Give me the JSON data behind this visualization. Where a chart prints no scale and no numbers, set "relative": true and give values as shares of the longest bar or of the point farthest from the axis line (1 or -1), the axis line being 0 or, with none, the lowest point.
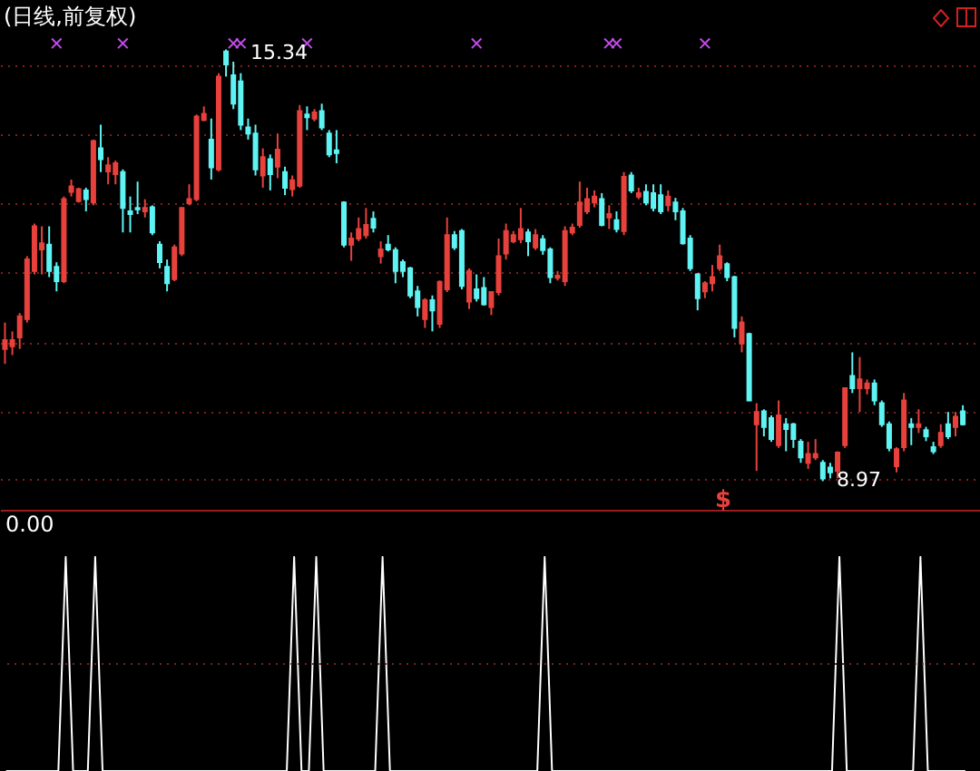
{
  "chart_data": [
    {
      "type": "candlestick",
      "title": "(日线,前复权)",
      "categories": [
        null,
        null,
        null,
        null,
        null,
        null,
        null,
        null,
        null,
        null,
        null,
        null,
        null,
        null,
        null,
        null,
        null,
        null,
        null,
        null,
        null,
        null,
        null,
        null,
        null,
        null,
        null,
        null,
        null,
        null,
        null,
        null,
        null,
        null,
        null,
        null,
        null,
        null,
        null,
        null,
        null,
        null,
        null,
        null,
        null,
        null,
        null,
        null,
        null,
        null,
        null,
        null,
        null,
        null,
        null,
        null,
        null,
        null,
        null,
        null,
        null,
        null,
        null,
        null,
        null,
        null,
        null,
        null,
        null,
        null,
        null,
        null,
        null,
        null,
        null,
        null,
        null,
        null,
        null,
        null,
        null,
        null,
        null,
        null,
        null,
        null,
        null,
        null,
        null,
        null,
        null,
        null,
        null,
        null,
        null,
        null,
        null,
        null,
        null,
        null,
        null,
        null,
        null,
        null,
        null,
        null,
        null,
        null,
        null,
        null,
        null,
        null,
        null,
        null,
        null,
        null,
        null,
        null,
        null,
        null,
        null,
        null,
        null,
        null,
        null,
        null,
        null,
        null,
        null,
        null,
        null
      ],
      "ohlc": [
        [
          10.92,
          11.31,
          10.7,
          11.05
        ],
        [
          10.96,
          11.18,
          10.83,
          11.05
        ],
        [
          11.09,
          11.45,
          10.92,
          11.4
        ],
        [
          11.36,
          12.29,
          11.31,
          12.24
        ],
        [
          12.07,
          12.77,
          12.02,
          12.73
        ],
        [
          12.39,
          12.73,
          12.02,
          12.48
        ],
        [
          12.46,
          12.73,
          11.98,
          12.07
        ],
        [
          12.13,
          12.2,
          11.77,
          11.92
        ],
        [
          11.92,
          13.17,
          11.89,
          13.13
        ],
        [
          13.24,
          13.42,
          13.17,
          13.32
        ],
        [
          13.1,
          13.3,
          13.08,
          13.28
        ],
        [
          13.26,
          13.3,
          12.95,
          13.13
        ],
        [
          13.08,
          14.01,
          13.04,
          13.99
        ],
        [
          13.88,
          14.23,
          13.53,
          13.72
        ],
        [
          13.54,
          13.75,
          13.35,
          13.63
        ],
        [
          13.5,
          13.7,
          13.35,
          13.66
        ],
        [
          13.53,
          13.57,
          12.64,
          13.0
        ],
        [
          12.95,
          13.17,
          12.64,
          12.91
        ],
        [
          13.0,
          13.39,
          12.91,
          12.98
        ],
        [
          12.95,
          13.13,
          12.86,
          13.0
        ],
        [
          13.01,
          13.04,
          12.6,
          12.64
        ],
        [
          12.46,
          12.51,
          12.11,
          12.2
        ],
        [
          12.13,
          12.24,
          11.77,
          11.89
        ],
        [
          11.95,
          12.46,
          11.92,
          12.42
        ],
        [
          12.33,
          13.01,
          12.29,
          13.0
        ],
        [
          13.07,
          13.35,
          13.04,
          13.13
        ],
        [
          13.13,
          14.38,
          13.1,
          14.35
        ],
        [
          14.3,
          14.5,
          14.28,
          14.39
        ],
        [
          14.01,
          14.32,
          13.42,
          13.6
        ],
        [
          13.57,
          14.99,
          13.54,
          14.94
        ],
        [
          15.31,
          15.34,
          14.94,
          15.12
        ],
        [
          14.96,
          15.16,
          14.46,
          14.54
        ],
        [
          14.87,
          14.99,
          14.15,
          14.23
        ],
        [
          14.19,
          14.32,
          14.01,
          14.1
        ],
        [
          14.1,
          14.23,
          13.48,
          13.57
        ],
        [
          13.48,
          13.88,
          13.3,
          13.75
        ],
        [
          13.72,
          13.79,
          13.26,
          13.5
        ],
        [
          13.61,
          14.1,
          13.44,
          13.86
        ],
        [
          13.53,
          13.61,
          13.19,
          13.3
        ],
        [
          13.28,
          13.48,
          13.17,
          13.41
        ],
        [
          13.33,
          14.52,
          13.3,
          14.43
        ],
        [
          14.38,
          14.5,
          14.15,
          14.34
        ],
        [
          14.32,
          14.46,
          14.28,
          14.41
        ],
        [
          14.43,
          14.54,
          14.15,
          14.19
        ],
        [
          14.1,
          14.15,
          13.75,
          13.79
        ],
        [
          13.85,
          14.15,
          13.66,
          13.81
        ],
        [
          13.08,
          13.1,
          12.42,
          12.46
        ],
        [
          12.46,
          12.64,
          12.22,
          12.55
        ],
        [
          12.55,
          12.86,
          12.51,
          12.69
        ],
        [
          12.6,
          13.0,
          12.55,
          12.75
        ],
        [
          12.84,
          12.95,
          12.64,
          12.71
        ],
        [
          12.29,
          12.51,
          12.18,
          12.39
        ],
        [
          12.46,
          12.6,
          12.36,
          12.39
        ],
        [
          12.38,
          12.42,
          11.89,
          12.07
        ],
        [
          12.2,
          12.24,
          11.98,
          12.07
        ],
        [
          12.11,
          12.13,
          11.67,
          11.71
        ],
        [
          11.77,
          11.85,
          11.4,
          11.54
        ],
        [
          11.36,
          11.67,
          11.23,
          11.64
        ],
        [
          11.64,
          11.71,
          11.18,
          11.49
        ],
        [
          11.29,
          11.93,
          11.23,
          11.91
        ],
        [
          11.8,
          12.86,
          11.76,
          12.6
        ],
        [
          12.6,
          12.66,
          12.38,
          12.42
        ],
        [
          12.66,
          12.69,
          11.8,
          11.85
        ],
        [
          11.62,
          12.11,
          11.51,
          12.07
        ],
        [
          11.8,
          12.02,
          11.62,
          11.67
        ],
        [
          11.82,
          11.98,
          11.56,
          11.58
        ],
        [
          11.54,
          11.77,
          11.42,
          11.76
        ],
        [
          11.76,
          12.55,
          11.71,
          12.29
        ],
        [
          12.33,
          12.77,
          12.24,
          12.66
        ],
        [
          12.51,
          12.66,
          12.48,
          12.6
        ],
        [
          12.54,
          13.0,
          12.48,
          12.69
        ],
        [
          12.64,
          12.69,
          12.29,
          12.51
        ],
        [
          12.42,
          12.69,
          12.38,
          12.6
        ],
        [
          12.54,
          12.6,
          12.31,
          12.38
        ],
        [
          12.39,
          12.42,
          11.89,
          11.98
        ],
        [
          11.97,
          12.07,
          11.93,
          12.0
        ],
        [
          11.92,
          12.73,
          11.85,
          12.66
        ],
        [
          12.64,
          12.77,
          12.6,
          12.71
        ],
        [
          12.75,
          13.39,
          12.71,
          13.08
        ],
        [
          12.95,
          13.3,
          12.91,
          13.13
        ],
        [
          13.08,
          13.26,
          13.01,
          13.17
        ],
        [
          13.13,
          13.22,
          12.73,
          12.75
        ],
        [
          12.86,
          13.04,
          12.69,
          12.91
        ],
        [
          12.82,
          12.95,
          12.64,
          12.69
        ],
        [
          12.66,
          13.53,
          12.6,
          13.46
        ],
        [
          13.48,
          13.53,
          13.22,
          13.26
        ],
        [
          13.17,
          13.3,
          13.13,
          13.22
        ],
        [
          13.24,
          13.35,
          13.04,
          13.08
        ],
        [
          13.22,
          13.35,
          12.95,
          13.0
        ],
        [
          13.19,
          13.35,
          12.91,
          12.95
        ],
        [
          13.04,
          13.26,
          12.95,
          13.17
        ],
        [
          13.08,
          13.15,
          12.82,
          12.95
        ],
        [
          12.95,
          13.0,
          12.46,
          12.48
        ],
        [
          12.55,
          12.6,
          12.07,
          12.11
        ],
        [
          12.02,
          12.04,
          11.49,
          11.67
        ],
        [
          11.77,
          11.92,
          11.67,
          11.89
        ],
        [
          11.89,
          12.16,
          11.77,
          11.98
        ],
        [
          12.11,
          12.46,
          12.07,
          12.29
        ],
        [
          12.17,
          12.2,
          11.92,
          11.98
        ],
        [
          11.98,
          12.0,
          11.09,
          11.23
        ],
        [
          11.0,
          11.4,
          10.87,
          11.31
        ],
        [
          11.14,
          11.16,
          10.15,
          10.16
        ],
        [
          9.81,
          10.12,
          9.12,
          9.99
        ],
        [
          10.0,
          10.03,
          9.63,
          9.77
        ],
        [
          9.9,
          9.94,
          9.55,
          9.59
        ],
        [
          9.5,
          10.16,
          9.46,
          9.94
        ],
        [
          9.81,
          9.9,
          9.41,
          9.74
        ],
        [
          9.81,
          9.83,
          9.46,
          9.59
        ],
        [
          9.55,
          9.59,
          9.24,
          9.32
        ],
        [
          9.24,
          9.55,
          9.15,
          9.37
        ],
        [
          9.32,
          9.59,
          9.28,
          9.37
        ],
        [
          9.24,
          9.28,
          8.97,
          9.01
        ],
        [
          9.17,
          9.24,
          9.01,
          9.1
        ],
        [
          9.12,
          9.41,
          9.01,
          9.39
        ],
        [
          9.5,
          10.34,
          9.46,
          10.34
        ],
        [
          10.52,
          10.87,
          10.27,
          10.34
        ],
        [
          10.34,
          10.8,
          9.99,
          10.47
        ],
        [
          10.34,
          10.47,
          10.25,
          10.41
        ],
        [
          10.41,
          10.47,
          10.09,
          10.16
        ],
        [
          10.12,
          10.16,
          9.77,
          9.81
        ],
        [
          9.81,
          9.85,
          9.41,
          9.46
        ],
        [
          9.19,
          9.47,
          9.1,
          9.44
        ],
        [
          9.47,
          10.27,
          9.41,
          10.16
        ],
        [
          9.81,
          9.9,
          9.5,
          9.77
        ],
        [
          9.77,
          10.03,
          9.68,
          9.81
        ],
        [
          9.72,
          9.77,
          9.56,
          9.63
        ],
        [
          9.47,
          9.55,
          9.37,
          9.41
        ],
        [
          9.5,
          9.81,
          9.46,
          9.68
        ],
        [
          9.81,
          9.99,
          9.59,
          9.63
        ],
        [
          9.77,
          9.99,
          9.63,
          9.92
        ],
        [
          10.0,
          10.09,
          9.79,
          9.81
        ]
      ],
      "colors": [
        "#e8413c",
        "#e8413c",
        "#e8413c",
        "#e8413c",
        "#e8413c",
        "#e8413c",
        "#5ff3f3",
        "#5ff3f3",
        "#e8413c",
        "#e8413c",
        "#e8413c",
        "#5ff3f3",
        "#e8413c",
        "#5ff3f3",
        "#e8413c",
        "#e8413c",
        "#5ff3f3",
        "#5ff3f3",
        "#5ff3f3",
        "#e8413c",
        "#5ff3f3",
        "#5ff3f3",
        "#5ff3f3",
        "#e8413c",
        "#e8413c",
        "#e8413c",
        "#e8413c",
        "#e8413c",
        "#5ff3f3",
        "#e8413c",
        "#5ff3f3",
        "#5ff3f3",
        "#5ff3f3",
        "#5ff3f3",
        "#5ff3f3",
        "#e8413c",
        "#5ff3f3",
        "#e8413c",
        "#5ff3f3",
        "#e8413c",
        "#e8413c",
        "#5ff3f3",
        "#e8413c",
        "#5ff3f3",
        "#5ff3f3",
        "#5ff3f3",
        "#5ff3f3",
        "#e8413c",
        "#e8413c",
        "#e8413c",
        "#5ff3f3",
        "#e8413c",
        "#5ff3f3",
        "#5ff3f3",
        "#5ff3f3",
        "#5ff3f3",
        "#5ff3f3",
        "#e8413c",
        "#5ff3f3",
        "#e8413c",
        "#e8413c",
        "#5ff3f3",
        "#5ff3f3",
        "#e8413c",
        "#5ff3f3",
        "#5ff3f3",
        "#e8413c",
        "#e8413c",
        "#e8413c",
        "#e8413c",
        "#e8413c",
        "#5ff3f3",
        "#e8413c",
        "#5ff3f3",
        "#5ff3f3",
        "#e8413c",
        "#e8413c",
        "#e8413c",
        "#e8413c",
        "#e8413c",
        "#e8413c",
        "#5ff3f3",
        "#e8413c",
        "#5ff3f3",
        "#e8413c",
        "#5ff3f3",
        "#e8413c",
        "#5ff3f3",
        "#5ff3f3",
        "#5ff3f3",
        "#e8413c",
        "#5ff3f3",
        "#5ff3f3",
        "#5ff3f3",
        "#5ff3f3",
        "#e8413c",
        "#e8413c",
        "#e8413c",
        "#5ff3f3",
        "#5ff3f3",
        "#e8413c",
        "#5ff3f3",
        "#e8413c",
        "#5ff3f3",
        "#5ff3f3",
        "#e8413c",
        "#5ff3f3",
        "#5ff3f3",
        "#5ff3f3",
        "#e8413c",
        "#e8413c",
        "#5ff3f3",
        "#5ff3f3",
        "#e8413c",
        "#e8413c",
        "#5ff3f3",
        "#e8413c",
        "#e8413c",
        "#5ff3f3",
        "#5ff3f3",
        "#5ff3f3",
        "#e8413c",
        "#e8413c",
        "#5ff3f3",
        "#e8413c",
        "#5ff3f3",
        "#5ff3f3",
        "#e8413c",
        "#5ff3f3",
        "#e8413c",
        "#5ff3f3"
      ],
      "yticks": [
        {
          "value": 15.1,
          "label": null
        },
        {
          "value": 14.08,
          "label": null
        },
        {
          "value": 13.07,
          "label": null
        },
        {
          "value": 12.05,
          "label": null
        },
        {
          "value": 11.02,
          "label": null
        },
        {
          "value": 10.0,
          "label": null
        },
        {
          "value": 8.99,
          "label": null
        }
      ],
      "grid": "y",
      "tick_labels": false,
      "annotations": [
        "15.34",
        "8.97",
        "$"
      ],
      "series": [
        {
          "type": "scatter",
          "color": "#c04ce8",
          "marker": "cross",
          "values": [
            null,
            null,
            null,
            null,
            null,
            null,
            null,
            15.43,
            null,
            null,
            null,
            null,
            null,
            null,
            null,
            null,
            15.43,
            null,
            null,
            null,
            null,
            null,
            null,
            null,
            null,
            null,
            null,
            null,
            null,
            null,
            null,
            15.43,
            15.43,
            null,
            null,
            null,
            null,
            null,
            null,
            null,
            null,
            15.43,
            null,
            null,
            null,
            null,
            null,
            null,
            null,
            null,
            null,
            null,
            null,
            null,
            null,
            null,
            null,
            null,
            null,
            null,
            null,
            null,
            null,
            null,
            15.43,
            null,
            null,
            null,
            null,
            null,
            null,
            null,
            null,
            null,
            null,
            null,
            null,
            null,
            null,
            null,
            null,
            null,
            15.43,
            15.43,
            null,
            null,
            null,
            null,
            null,
            null,
            null,
            null,
            null,
            null,
            null,
            15.43,
            null,
            null,
            null,
            null,
            null,
            null,
            null,
            null,
            null,
            null,
            null,
            null,
            null,
            null,
            null,
            null,
            null,
            null,
            null,
            null,
            null,
            null,
            null,
            null,
            null,
            null,
            null,
            null,
            null,
            null,
            null,
            null,
            null,
            null,
            null
          ]
        }
      ]
    },
    {
      "type": "line",
      "title": "0.00",
      "relative": true,
      "tick_labels": false,
      "categories": [
        null,
        null,
        null,
        null,
        null,
        null,
        null,
        null,
        null,
        null,
        null,
        null,
        null,
        null,
        null,
        null,
        null,
        null,
        null,
        null,
        null,
        null,
        null,
        null,
        null,
        null,
        null,
        null,
        null,
        null,
        null,
        null,
        null,
        null,
        null,
        null,
        null,
        null,
        null,
        null,
        null,
        null,
        null,
        null,
        null,
        null,
        null,
        null,
        null,
        null,
        null,
        null,
        null,
        null,
        null,
        null,
        null,
        null,
        null,
        null,
        null,
        null,
        null,
        null,
        null,
        null,
        null,
        null,
        null,
        null,
        null,
        null,
        null,
        null,
        null,
        null,
        null,
        null,
        null,
        null,
        null,
        null,
        null,
        null,
        null,
        null,
        null,
        null,
        null,
        null,
        null,
        null,
        null,
        null,
        null,
        null,
        null,
        null,
        null,
        null,
        null,
        null,
        null,
        null,
        null,
        null,
        null,
        null,
        null,
        null,
        null,
        null,
        null,
        null,
        null,
        null,
        null,
        null,
        null,
        null,
        null,
        null,
        null,
        null,
        null,
        null,
        null,
        null,
        null,
        null,
        null
      ],
      "series": [
        {
          "color": "#ffffff",
          "values": [
            0,
            0,
            0,
            0,
            0,
            0,
            0,
            0,
            1,
            0,
            0,
            0,
            1,
            0,
            0,
            0,
            0,
            0,
            0,
            0,
            0,
            0,
            0,
            0,
            0,
            0,
            0,
            0,
            0,
            0,
            0,
            0,
            0,
            0,
            0,
            0,
            0,
            0,
            0,
            1,
            0,
            0,
            1,
            0,
            0,
            0,
            0,
            0,
            0,
            0,
            0,
            1,
            0,
            0,
            0,
            0,
            0,
            0,
            0,
            0,
            0,
            0,
            0,
            0,
            0,
            0,
            0,
            0,
            0,
            0,
            0,
            0,
            0,
            1,
            0,
            0,
            0,
            0,
            0,
            0,
            0,
            0,
            0,
            0,
            0,
            0,
            0,
            0,
            0,
            0,
            0,
            0,
            0,
            0,
            0,
            0,
            0,
            0,
            0,
            0,
            0,
            0,
            0,
            0,
            0,
            0,
            0,
            0,
            0,
            0,
            0,
            0,
            0,
            1,
            0,
            0,
            0,
            0,
            0,
            0,
            0,
            0,
            0,
            0,
            1,
            0,
            0,
            0,
            0,
            0,
            0
          ]
        }
      ],
      "ref_lines": [
        {
          "axis": "y",
          "value": 0.5,
          "color": "#7a2020",
          "line_style": "dotted"
        }
      ]
    }
  ]
}
